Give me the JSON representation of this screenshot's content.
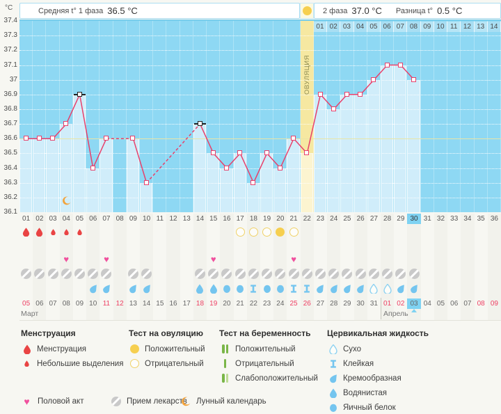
{
  "header": {
    "unit": "°C",
    "phase1_label": "Средняя t° 1 фаза",
    "phase1_value": "36.5 °C",
    "phase2_label": "2 фаза",
    "phase2_value": "37.0 °C",
    "diff_label": "Разница t°",
    "diff_value": "0.5 °C"
  },
  "colors": {
    "chart_bg": "#8ed8f3",
    "chart_bar": "#d0edfa",
    "ovulation_column": "#f6e8a1",
    "ovulation_column_light": "#fcf4d0",
    "temperature_line": "#e8406b",
    "coverline": "#e9e5a6",
    "excluded_marker": "#222222",
    "menstruation_red": "#e94444",
    "test_yellow": "#f6cf4f",
    "test_yellow_outline": "#f0d268",
    "pregnancy_green": "#7ab648",
    "pregnancy_green_light": "#bedc96",
    "cervical_blue": "#74c5ef",
    "cervical_outline": "#8ed2f1",
    "heart_pink": "#f0519e",
    "pill_gray": "#c9c9c9",
    "moon_orange": "#f2a33c",
    "today_highlight": "#7ed2f2",
    "weekend_red": "#ee4165",
    "dpo_cell_a": "#b7e5f6",
    "dpo_cell_b": "#a8def3"
  },
  "chart_data": {
    "type": "line",
    "title": "Basal body temperature cycle chart",
    "ylabel": "°C",
    "ylim": [
      36.1,
      37.4
    ],
    "ytick_step": 0.1,
    "yticks": [
      "37.4",
      "37.3",
      "37.2",
      "37.1",
      "37",
      "36.9",
      "36.8",
      "36.7",
      "36.6",
      "36.5",
      "36.4",
      "36.3",
      "36.2",
      "36.1"
    ],
    "grid": "dotted-white",
    "days": 36,
    "day_numbers": [
      "01",
      "02",
      "03",
      "04",
      "05",
      "06",
      "07",
      "08",
      "09",
      "10",
      "11",
      "12",
      "13",
      "14",
      "15",
      "16",
      "17",
      "18",
      "19",
      "20",
      "21",
      "22",
      "23",
      "24",
      "25",
      "26",
      "27",
      "28",
      "29",
      "30",
      "31",
      "32",
      "33",
      "34",
      "35",
      "36"
    ],
    "temperatures": [
      36.6,
      36.6,
      36.6,
      36.7,
      36.9,
      36.4,
      36.6,
      null,
      36.6,
      36.3,
      null,
      null,
      null,
      36.7,
      36.5,
      36.4,
      36.5,
      36.3,
      36.5,
      36.4,
      36.6,
      36.5,
      36.9,
      36.8,
      36.9,
      36.9,
      37.0,
      37.1,
      37.1,
      37.0,
      null,
      null,
      null,
      null,
      null,
      null
    ],
    "excluded_days": [
      5,
      14
    ],
    "coverline": 36.6,
    "ovulation_day": 22,
    "ovulation_label": "ОВУЛЯЦИЯ",
    "current_day": 30,
    "lunar_calendar_day": 4,
    "dpo_numbers": [
      "01",
      "02",
      "03",
      "04",
      "05",
      "06",
      "07",
      "08",
      "09",
      "10",
      "11",
      "12",
      "13",
      "14"
    ],
    "phase1_avg": 36.5,
    "phase2_avg": 37.0,
    "phase_difference": 0.5
  },
  "rows": {
    "menstruation": [
      {
        "day": 1,
        "size": "large"
      },
      {
        "day": 2,
        "size": "large"
      },
      {
        "day": 3,
        "size": "small"
      },
      {
        "day": 4,
        "size": "small"
      },
      {
        "day": 5,
        "size": "small"
      }
    ],
    "ovulation_tests": [
      {
        "day": 17,
        "result": "negative"
      },
      {
        "day": 18,
        "result": "negative"
      },
      {
        "day": 19,
        "result": "negative"
      },
      {
        "day": 20,
        "result": "positive"
      },
      {
        "day": 21,
        "result": "negative"
      }
    ],
    "intercourse_days": [
      4,
      7,
      15,
      21
    ],
    "medication_days": [
      1,
      2,
      3,
      4,
      5,
      6,
      7,
      9,
      10,
      14,
      15,
      16,
      17,
      18,
      19,
      20,
      21,
      22,
      23,
      24,
      25,
      26,
      27,
      28,
      29,
      30
    ],
    "cervical": [
      {
        "day": 6,
        "type": "creamy"
      },
      {
        "day": 7,
        "type": "creamy"
      },
      {
        "day": 9,
        "type": "creamy"
      },
      {
        "day": 10,
        "type": "creamy"
      },
      {
        "day": 14,
        "type": "watery"
      },
      {
        "day": 15,
        "type": "watery"
      },
      {
        "day": 16,
        "type": "eggwhite"
      },
      {
        "day": 17,
        "type": "eggwhite"
      },
      {
        "day": 18,
        "type": "sticky"
      },
      {
        "day": 19,
        "type": "eggwhite"
      },
      {
        "day": 20,
        "type": "eggwhite"
      },
      {
        "day": 21,
        "type": "sticky"
      },
      {
        "day": 22,
        "type": "sticky"
      },
      {
        "day": 23,
        "type": "creamy"
      },
      {
        "day": 24,
        "type": "creamy"
      },
      {
        "day": 25,
        "type": "creamy"
      },
      {
        "day": 26,
        "type": "creamy"
      },
      {
        "day": 27,
        "type": "dry"
      },
      {
        "day": 28,
        "type": "dry"
      },
      {
        "day": 29,
        "type": "creamy"
      },
      {
        "day": 30,
        "type": "creamy"
      }
    ]
  },
  "calendar": {
    "months": [
      {
        "label": "Март",
        "first_cycle_day": 1
      },
      {
        "label": "Апрель",
        "first_cycle_day": 28
      }
    ],
    "today_cycle_day": 30,
    "dates": [
      {
        "label": "05",
        "red": true
      },
      {
        "label": "06"
      },
      {
        "label": "07"
      },
      {
        "label": "08"
      },
      {
        "label": "09"
      },
      {
        "label": "10"
      },
      {
        "label": "11",
        "red": true
      },
      {
        "label": "12",
        "red": true
      },
      {
        "label": "13"
      },
      {
        "label": "14"
      },
      {
        "label": "15"
      },
      {
        "label": "16"
      },
      {
        "label": "17"
      },
      {
        "label": "18",
        "red": true
      },
      {
        "label": "19",
        "red": true
      },
      {
        "label": "20"
      },
      {
        "label": "21"
      },
      {
        "label": "22"
      },
      {
        "label": "23"
      },
      {
        "label": "24"
      },
      {
        "label": "25",
        "red": true
      },
      {
        "label": "26",
        "red": true
      },
      {
        "label": "27"
      },
      {
        "label": "28"
      },
      {
        "label": "29"
      },
      {
        "label": "30"
      },
      {
        "label": "31"
      },
      {
        "label": "01",
        "red": true
      },
      {
        "label": "02",
        "red": true
      },
      {
        "label": "03",
        "today": true
      },
      {
        "label": "04"
      },
      {
        "label": "05"
      },
      {
        "label": "06"
      },
      {
        "label": "07"
      },
      {
        "label": "08",
        "red": true
      },
      {
        "label": "09",
        "red": true
      }
    ]
  },
  "legend": {
    "groups": [
      {
        "title": "Менструация",
        "items": [
          {
            "icon": "drop-large",
            "label": "Менструация"
          },
          {
            "icon": "drop-small",
            "label": "Небольшие выделения"
          }
        ]
      },
      {
        "title": "Тест на овуляцию",
        "items": [
          {
            "icon": "circle-filled",
            "label": "Положительный"
          },
          {
            "icon": "circle-outline",
            "label": "Отрицательный"
          }
        ]
      },
      {
        "title": "Тест на беременность",
        "items": [
          {
            "icon": "bars-positive",
            "label": "Положительный"
          },
          {
            "icon": "bars-negative",
            "label": "Отрицательный"
          },
          {
            "icon": "bars-weak",
            "label": "Слабоположительный"
          }
        ]
      },
      {
        "title": "Цервикальная жидкость",
        "items": [
          {
            "icon": "cerv-dry",
            "label": "Сухо"
          },
          {
            "icon": "cerv-sticky",
            "label": "Клейкая"
          },
          {
            "icon": "cerv-creamy",
            "label": "Кремообразная"
          },
          {
            "icon": "cerv-watery",
            "label": "Водянистая"
          },
          {
            "icon": "cerv-eggwhite",
            "label": "Яичный белок"
          }
        ]
      }
    ],
    "bottom": [
      {
        "icon": "heart",
        "label": "Половой акт"
      },
      {
        "icon": "pill",
        "label": "Прием лекарств"
      },
      {
        "icon": "moon",
        "label": "Лунный календарь"
      }
    ]
  }
}
